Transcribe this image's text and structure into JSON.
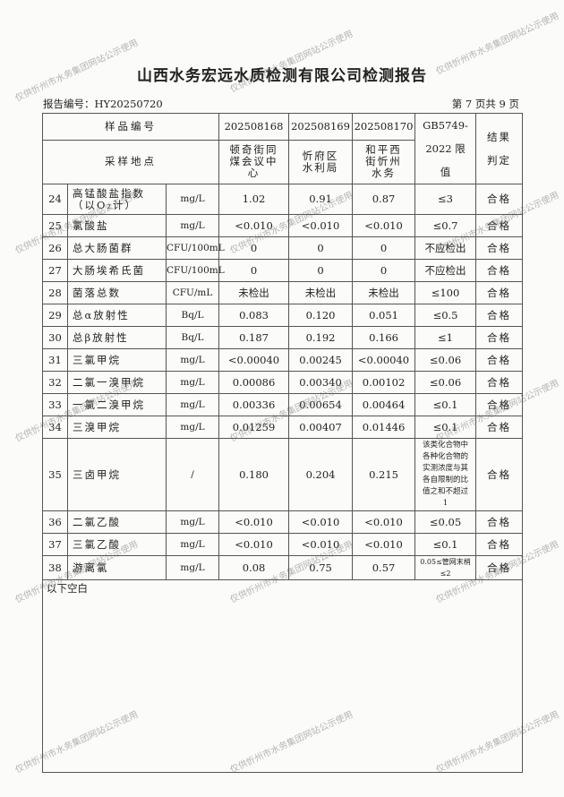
{
  "title": "山西水务宏远水质检测有限公司检测报告",
  "report_no": "报告编号：HY20250720",
  "page_no": "第 7 页共 9 页",
  "header": {
    "sample_no_label": "样品编号",
    "site_label": "采样地点",
    "samples": [
      "202508168",
      "202508169",
      "202508170"
    ],
    "sites": [
      "顿奇街同煤会议中心",
      "忻府区水利局",
      "和平西街忻州水务"
    ],
    "limit_label": "GB5749-2022 限值",
    "result_label": "结果判定"
  },
  "rows": [
    {
      "no": "24",
      "item": "高锰酸盐指数（以O₂计）",
      "unit": "mg/L",
      "v1": "1.02",
      "v2": "0.91",
      "v3": "0.87",
      "limit": "≤3",
      "result": "合格"
    },
    {
      "no": "25",
      "item": "氯酸盐",
      "unit": "mg/L",
      "v1": "<0.010",
      "v2": "<0.010",
      "v3": "<0.010",
      "limit": "≤0.7",
      "result": "合格"
    },
    {
      "no": "26",
      "item": "总大肠菌群",
      "unit": "CFU/100mL",
      "v1": "0",
      "v2": "0",
      "v3": "0",
      "limit": "不应检出",
      "result": "合格"
    },
    {
      "no": "27",
      "item": "大肠埃希氏菌",
      "unit": "CFU/100mL",
      "v1": "0",
      "v2": "0",
      "v3": "0",
      "limit": "不应检出",
      "result": "合格"
    },
    {
      "no": "28",
      "item": "菌落总数",
      "unit": "CFU/mL",
      "v1": "未检出",
      "v2": "未检出",
      "v3": "未检出",
      "limit": "≤100",
      "result": "合格"
    },
    {
      "no": "29",
      "item": "总α放射性",
      "unit": "Bq/L",
      "v1": "0.083",
      "v2": "0.120",
      "v3": "0.051",
      "limit": "≤0.5",
      "result": "合格"
    },
    {
      "no": "30",
      "item": "总β放射性",
      "unit": "Bq/L",
      "v1": "0.187",
      "v2": "0.192",
      "v3": "0.166",
      "limit": "≤1",
      "result": "合格"
    },
    {
      "no": "31",
      "item": "三氯甲烷",
      "unit": "mg/L",
      "v1": "<0.00040",
      "v2": "0.00245",
      "v3": "<0.00040",
      "limit": "≤0.06",
      "result": "合格"
    },
    {
      "no": "32",
      "item": "二氯一溴甲烷",
      "unit": "mg/L",
      "v1": "0.00086",
      "v2": "0.00340",
      "v3": "0.00102",
      "limit": "≤0.06",
      "result": "合格"
    },
    {
      "no": "33",
      "item": "一氯二溴甲烷",
      "unit": "mg/L",
      "v1": "0.00336",
      "v2": "0.00654",
      "v3": "0.00464",
      "limit": "≤0.1",
      "result": "合格"
    },
    {
      "no": "34",
      "item": "三溴甲烷",
      "unit": "mg/L",
      "v1": "0.01259",
      "v2": "0.00407",
      "v3": "0.01446",
      "limit": "≤0.1",
      "result": "合格"
    },
    {
      "no": "35",
      "item": "三卤甲烷",
      "unit": "/",
      "v1": "0.180",
      "v2": "0.204",
      "v3": "0.215",
      "limit": "该类化合物中各种化合物的实测浓度与其各自限制的比值之和不超过1",
      "result": "合格"
    },
    {
      "no": "36",
      "item": "二氯乙酸",
      "unit": "mg/L",
      "v1": "<0.010",
      "v2": "<0.010",
      "v3": "<0.010",
      "limit": "≤0.05",
      "result": "合格"
    },
    {
      "no": "37",
      "item": "三氯乙酸",
      "unit": "mg/L",
      "v1": "<0.010",
      "v2": "<0.010",
      "v3": "<0.010",
      "limit": "≤0.1",
      "result": "合格"
    },
    {
      "no": "38",
      "item": "游离氯",
      "unit": "mg/L",
      "v1": "0.08",
      "v2": "0.75",
      "v3": "0.57",
      "limit": "0.05≤管网末梢≤2",
      "result": "合格"
    }
  ],
  "blank_note": "以下空白",
  "watermark": "仅供忻州市水务集团网站公示使用"
}
